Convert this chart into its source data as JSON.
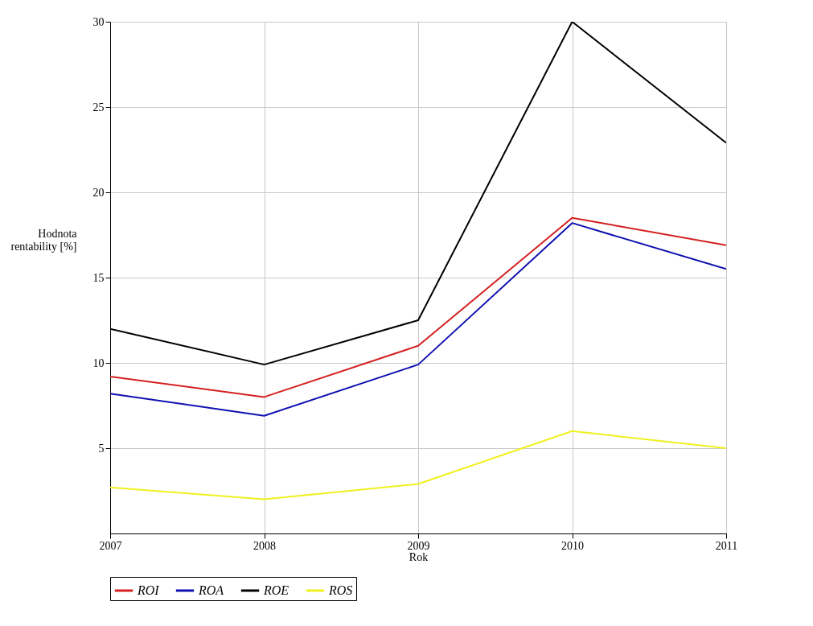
{
  "chart_data": {
    "type": "line",
    "xlabel": "Rok",
    "ylabel": "Hodnota rentability [%]",
    "x": [
      2007,
      2008,
      2009,
      2010,
      2011
    ],
    "xlim": [
      2007,
      2011
    ],
    "xticks": [
      2007,
      2008,
      2009,
      2010,
      2011
    ],
    "ylim": [
      0,
      30
    ],
    "yticks": [
      5,
      10,
      15,
      20,
      25,
      30
    ],
    "grid": true,
    "legend": "bottom",
    "marker": "none",
    "line_style": "solid",
    "series": [
      {
        "name": "ROI",
        "color": "#d42020",
        "values": [
          9.2,
          8.0,
          11.0,
          18.5,
          16.9
        ]
      },
      {
        "name": "ROA",
        "color": "#1010b0",
        "values": [
          8.2,
          6.9,
          9.9,
          18.2,
          15.5
        ]
      },
      {
        "name": "ROE",
        "color": "#000000",
        "values": [
          12.0,
          9.9,
          12.5,
          30.0,
          22.9
        ]
      },
      {
        "name": "ROS",
        "color": "#f0f020",
        "values": [
          2.7,
          2.0,
          2.9,
          6.0,
          5.0
        ]
      }
    ]
  }
}
